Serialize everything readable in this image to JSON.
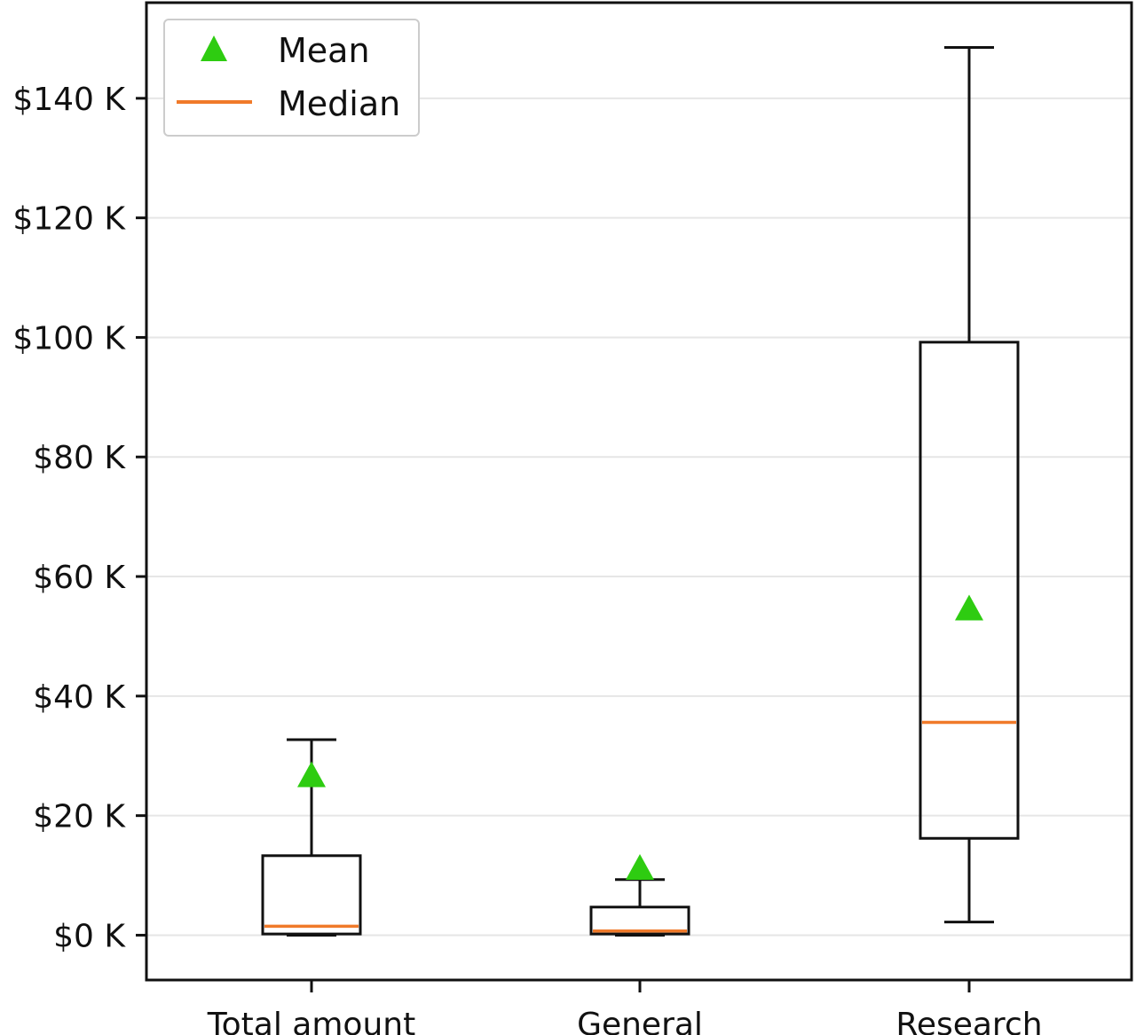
{
  "chart_data": {
    "type": "box",
    "title": "",
    "xlabel": "",
    "ylabel": "",
    "categories": [
      "Total amount",
      "General",
      "Research"
    ],
    "boxes": [
      {
        "category": "Total amount",
        "whisker_low": 0,
        "q1": 200,
        "median": 1500,
        "q3": 13300,
        "whisker_high": 32700,
        "mean": 26700
      },
      {
        "category": "General",
        "whisker_low": 0,
        "q1": 200,
        "median": 700,
        "q3": 4700,
        "whisker_high": 9300,
        "mean": 11200
      },
      {
        "category": "Research",
        "whisker_low": 2200,
        "q1": 16200,
        "median": 35600,
        "q3": 99200,
        "whisker_high": 148500,
        "mean": 54600
      }
    ],
    "y_ticks": [
      0,
      20000,
      40000,
      60000,
      80000,
      100000,
      120000,
      140000
    ],
    "y_tick_labels": [
      "$0 K",
      "$20 K",
      "$40 K",
      "$60 K",
      "$80 K",
      "$100 K",
      "$120 K",
      "$140 K"
    ],
    "ylim": [
      -7500,
      156000
    ],
    "grid": "horizontal",
    "legend": {
      "placement": "top-left",
      "entries": [
        {
          "label": "Mean",
          "marker": "triangle"
        },
        {
          "label": "Median",
          "marker": "line"
        }
      ]
    },
    "colors": {
      "mean": "#2ecc11",
      "median": "#f07a2a",
      "box": "#111111",
      "grid": "#e6e6e6"
    }
  }
}
